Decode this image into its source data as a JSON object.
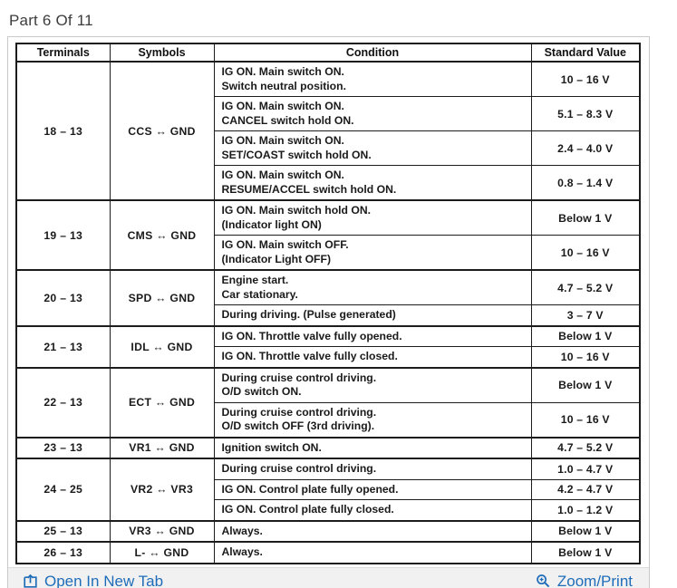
{
  "page": {
    "title": "Part 6 Of 11"
  },
  "table": {
    "headers": [
      "Terminals",
      "Symbols",
      "Condition",
      "Standard Value"
    ],
    "groups": [
      {
        "terminals": "18 – 13",
        "symbol": "CCS ↔ GND",
        "rows": [
          {
            "condition": [
              "IG ON. Main switch ON.",
              "Switch neutral position."
            ],
            "value": "10 – 16 V"
          },
          {
            "condition": [
              "IG ON. Main switch ON.",
              "CANCEL switch hold ON."
            ],
            "value": "5.1 – 8.3 V"
          },
          {
            "condition": [
              "IG ON. Main switch ON.",
              "SET/COAST switch hold ON."
            ],
            "value": "2.4 – 4.0 V"
          },
          {
            "condition": [
              "IG ON. Main switch ON.",
              "RESUME/ACCEL switch hold ON."
            ],
            "value": "0.8 – 1.4 V"
          }
        ]
      },
      {
        "terminals": "19 – 13",
        "symbol": "CMS ↔ GND",
        "rows": [
          {
            "condition": [
              "IG ON. Main switch hold ON.",
              "(Indicator light ON)"
            ],
            "value": "Below 1 V"
          },
          {
            "condition": [
              "IG ON. Main switch OFF.",
              "(Indicator Light OFF)"
            ],
            "value": "10 – 16 V"
          }
        ]
      },
      {
        "terminals": "20 – 13",
        "symbol": "SPD ↔ GND",
        "rows": [
          {
            "condition": [
              "Engine start.",
              "Car stationary."
            ],
            "value": "4.7 – 5.2 V"
          },
          {
            "condition": [
              "During driving. (Pulse generated)"
            ],
            "value": "3 – 7 V"
          }
        ]
      },
      {
        "terminals": "21 – 13",
        "symbol": "IDL ↔ GND",
        "rows": [
          {
            "condition": [
              "IG ON. Throttle valve fully opened."
            ],
            "value": "Below 1 V"
          },
          {
            "condition": [
              "IG ON. Throttle valve fully closed."
            ],
            "value": "10 – 16 V"
          }
        ]
      },
      {
        "terminals": "22 – 13",
        "symbol": "ECT ↔ GND",
        "rows": [
          {
            "condition": [
              "During cruise control driving.",
              "O/D switch ON."
            ],
            "value": "Below 1 V"
          },
          {
            "condition": [
              "During cruise control driving.",
              "O/D switch OFF (3rd driving)."
            ],
            "value": "10 – 16 V"
          }
        ]
      },
      {
        "terminals": "23 – 13",
        "symbol": "VR1 ↔ GND",
        "rows": [
          {
            "condition": [
              "Ignition switch ON."
            ],
            "value": "4.7 – 5.2 V"
          }
        ]
      },
      {
        "terminals": "24 – 25",
        "symbol": "VR2 ↔ VR3",
        "rows": [
          {
            "condition": [
              "During cruise control driving."
            ],
            "value": "1.0 – 4.7 V"
          },
          {
            "condition": [
              "IG ON. Control plate fully opened."
            ],
            "value": "4.2 – 4.7 V"
          },
          {
            "condition": [
              "IG ON. Control plate fully closed."
            ],
            "value": "1.0 – 1.2 V"
          }
        ]
      },
      {
        "terminals": "25 – 13",
        "symbol": "VR3 ↔ GND",
        "rows": [
          {
            "condition": [
              "Always."
            ],
            "value": "Below 1 V"
          }
        ]
      },
      {
        "terminals": "26 – 13",
        "symbol": "L- ↔ GND",
        "rows": [
          {
            "condition": [
              "Always."
            ],
            "value": "Below 1 V"
          }
        ]
      }
    ]
  },
  "footer": {
    "open_in_new_tab_label": "Open In New Tab",
    "zoom_print_label": "Zoom/Print",
    "open_icon": "open-in-new-tab-icon",
    "zoom_icon": "zoom-in-icon"
  },
  "colors": {
    "link_blue": "#1f6db8",
    "table_border": "#1c1c1c",
    "footer_bar_bg": "#f1f1f1",
    "frame_border": "#c9c9c9",
    "title_text": "#3d3d3d"
  }
}
